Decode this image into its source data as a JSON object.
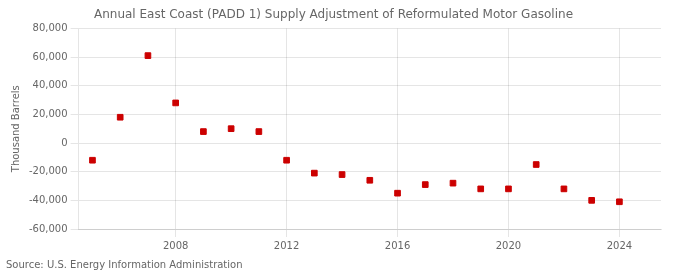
{
  "chart_data": {
    "type": "scatter",
    "title": "Annual East Coast (PADD 1) Supply Adjustment of Reformulated Motor Gasoline",
    "ylabel": "Thousand Barrels",
    "source": "Source: U.S. Energy Information Administration",
    "x": [
      2005,
      2006,
      2007,
      2008,
      2009,
      2010,
      2011,
      2012,
      2013,
      2014,
      2015,
      2016,
      2017,
      2018,
      2019,
      2020,
      2021,
      2022,
      2023,
      2024
    ],
    "values": [
      -12000,
      18000,
      61000,
      28000,
      8000,
      10000,
      8000,
      -12000,
      -21000,
      -22000,
      -26000,
      -35000,
      -29000,
      -28000,
      -32000,
      -32000,
      -15000,
      -32000,
      -40000,
      -41000
    ],
    "color": "#cc0000",
    "marker": "square",
    "xlim": [
      2004.5,
      2025.5
    ],
    "xticks": [
      2008,
      2012,
      2016,
      2020,
      2024
    ],
    "ylim": [
      -60000,
      80000
    ],
    "yticks": [
      {
        "value": -60000,
        "label": "-60,000"
      },
      {
        "value": -40000,
        "label": "-40,000"
      },
      {
        "value": -20000,
        "label": "-20,000"
      },
      0,
      {
        "value": 20000,
        "label": "20,000"
      },
      {
        "value": 40000,
        "label": "40,000"
      },
      {
        "value": 60000,
        "label": "60,000"
      },
      {
        "value": 80000,
        "label": "80,000"
      }
    ],
    "grid": true
  }
}
